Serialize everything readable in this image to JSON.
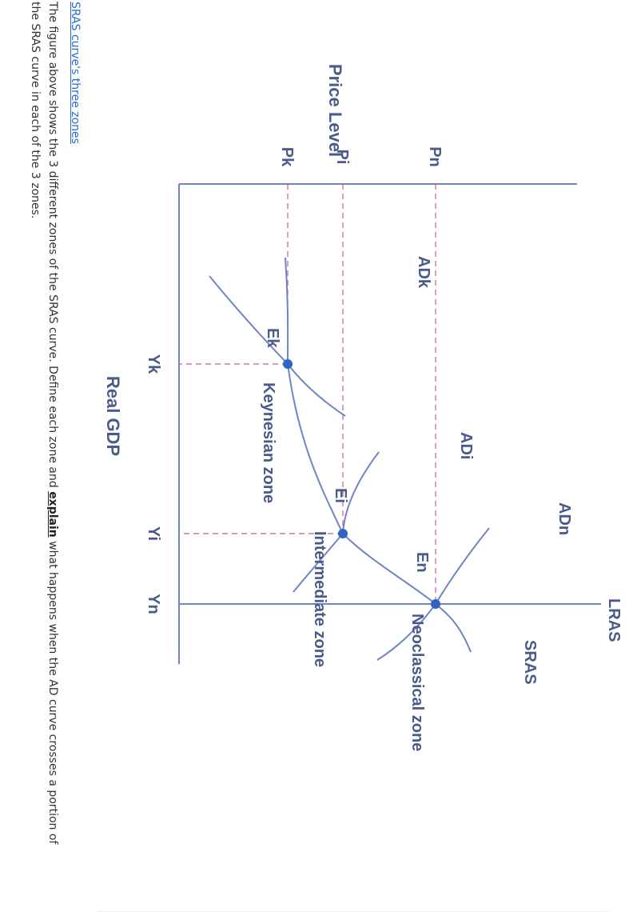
{
  "diagram": {
    "axes": {
      "y_label": "Price Level",
      "x_label": "Real GDP"
    },
    "price_ticks": [
      "Pn",
      "Pi",
      "Pk"
    ],
    "gdp_ticks": [
      "Yk",
      "Yi",
      "Yn"
    ],
    "curves": {
      "lras": "LRAS",
      "sras": "SRAS",
      "adn": "ADn",
      "adi": "ADi",
      "adk": "ADk"
    },
    "points": {
      "en": "En",
      "ei": "Ei",
      "ek": "Ek"
    },
    "zones": {
      "keynesian": "Keynesian zone",
      "intermediate": "Intermediate zone",
      "neoclassical": "Neoclassical zone"
    },
    "colors": {
      "curve": "#6f85c4",
      "point": "#2f63c8",
      "dashed": "#c45aa0",
      "label": "#4a5a8a"
    }
  },
  "caption": {
    "link": "SRAS curve's three zones",
    "question_before": "The figure above shows the 3 different zones of the SRAS curve. Define each zone and ",
    "question_keyword": "explain",
    "question_after": " what happens when the AD curve crosses a portion of the SRAS curve in each of the 3 zones."
  }
}
